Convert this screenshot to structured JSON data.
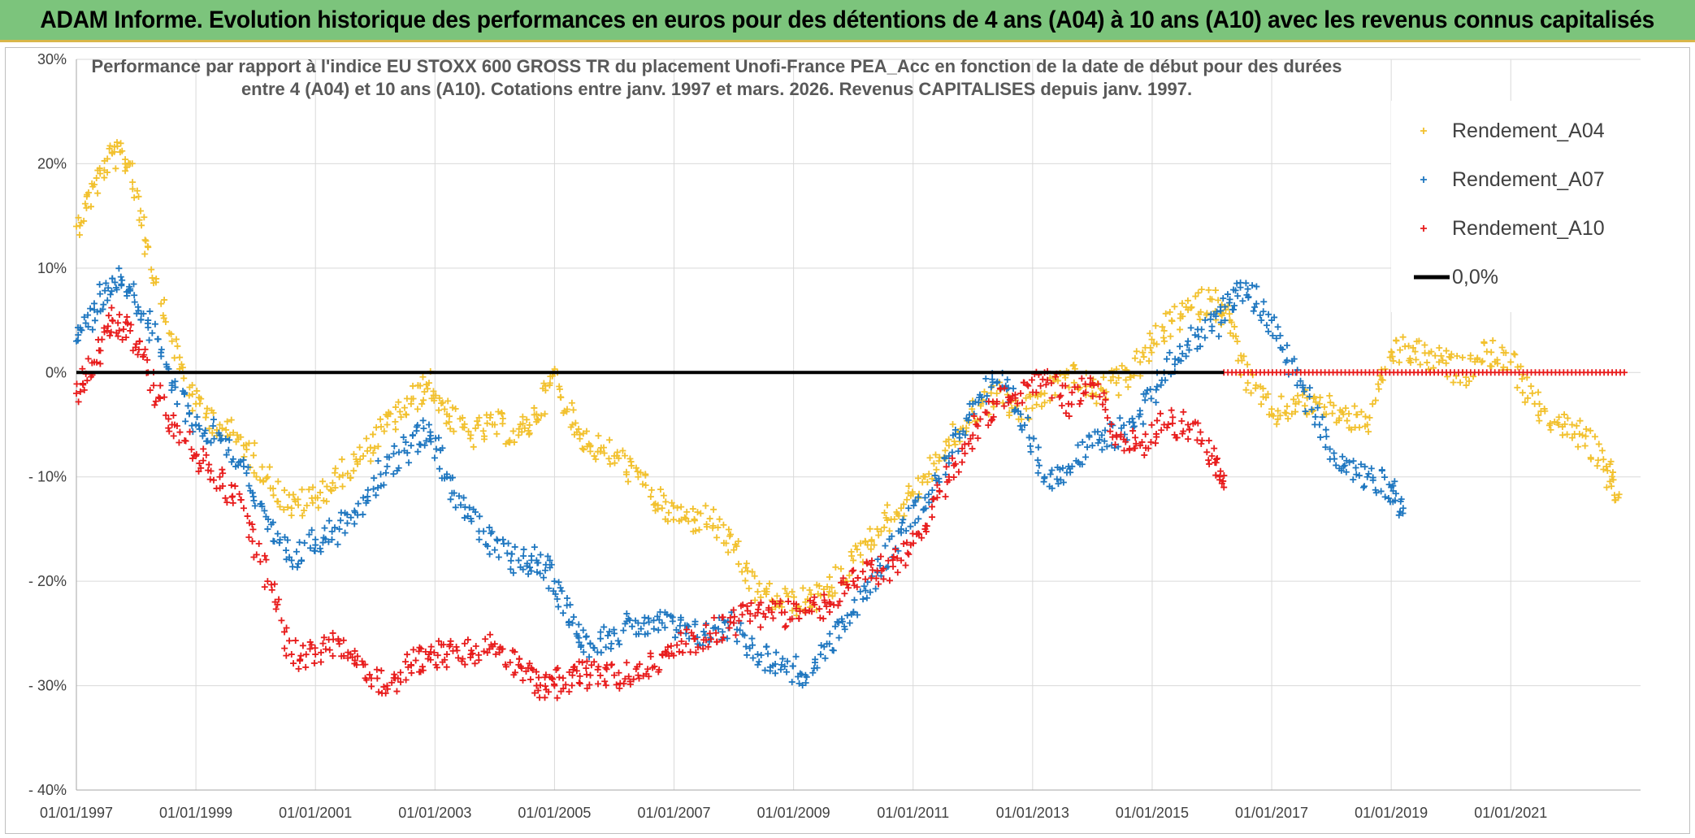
{
  "banner": {
    "title": "ADAM Informe. Evolution historique des performances en euros pour des détentions de 4 ans (A04) à 10 ans (A10) avec les revenus connus capitalisés"
  },
  "colors": {
    "banner_bg": "#7cc47c",
    "A04": "#f2c12e",
    "A07": "#1f77c0",
    "A10": "#e81c1c",
    "zero_line": "#000000",
    "grid": "#d9d9d9"
  },
  "chart_data": {
    "type": "scatter",
    "title_lines": [
      "Performance par rapport à l'indice EU STOXX 600 GROSS TR  du placement Unofi-France PEA_Acc en fonction de la date de début pour des durées",
      "entre 4 (A04) et 10 ans (A10). Cotations entre janv. 1997 et mars. 2026. Revenus CAPITALISES depuis janv. 1997."
    ],
    "xlabel": "",
    "ylabel": "",
    "x_range": [
      1997.0,
      2022.9
    ],
    "ylim": [
      -40,
      30
    ],
    "x_ticks": [
      {
        "x": 1997,
        "label": "01/01/1997"
      },
      {
        "x": 1999,
        "label": "01/01/1999"
      },
      {
        "x": 2001,
        "label": "01/01/2001"
      },
      {
        "x": 2003,
        "label": "01/01/2003"
      },
      {
        "x": 2005,
        "label": "01/01/2005"
      },
      {
        "x": 2007,
        "label": "01/01/2007"
      },
      {
        "x": 2009,
        "label": "01/01/2009"
      },
      {
        "x": 2011,
        "label": "01/01/2011"
      },
      {
        "x": 2013,
        "label": "01/01/2013"
      },
      {
        "x": 2015,
        "label": "01/01/2015"
      },
      {
        "x": 2017,
        "label": "01/01/2017"
      },
      {
        "x": 2019,
        "label": "01/01/2019"
      },
      {
        "x": 2021,
        "label": "01/01/2021"
      }
    ],
    "y_ticks": [
      {
        "y": 30,
        "label": "30%"
      },
      {
        "y": 20,
        "label": "20%"
      },
      {
        "y": 10,
        "label": "10%"
      },
      {
        "y": 0,
        "label": "0%"
      },
      {
        "y": -10,
        "label": "- 10%"
      },
      {
        "y": -20,
        "label": "- 20%"
      },
      {
        "y": -30,
        "label": "- 30%"
      },
      {
        "y": -40,
        "label": "- 40%"
      }
    ],
    "legend_position": "top-right",
    "legend": [
      {
        "key": "A04",
        "label": "Rendement_A04",
        "marker": "+"
      },
      {
        "key": "A07",
        "label": "Rendement_A07",
        "marker": "+"
      },
      {
        "key": "A10",
        "label": "Rendement_A10",
        "marker": "+"
      },
      {
        "key": "zero",
        "label": "0,0%",
        "marker": "line"
      }
    ],
    "reference_line": {
      "name": "0,0%",
      "y": 0
    },
    "series": [
      {
        "name": "Rendement_A04",
        "key": "A04",
        "x": [
          1997.0,
          1997.3,
          1997.6,
          1997.9,
          1998.2,
          1998.6,
          1999.0,
          1999.4,
          1999.8,
          2000.2,
          2000.6,
          2001.0,
          2001.4,
          2001.8,
          2002.2,
          2002.6,
          2002.9,
          2003.2,
          2003.6,
          2004.0,
          2004.4,
          2004.7,
          2005.0,
          2005.3,
          2005.6,
          2006.0,
          2006.4,
          2006.8,
          2007.2,
          2007.6,
          2008.0,
          2008.4,
          2008.8,
          2009.2,
          2009.6,
          2010.0,
          2010.4,
          2010.8,
          2011.2,
          2011.6,
          2012.0,
          2012.4,
          2012.8,
          2013.2,
          2013.6,
          2014.0,
          2014.4,
          2014.8,
          2015.2,
          2015.6,
          2016.0,
          2016.3,
          2016.6,
          2017.0,
          2017.4,
          2017.8,
          2018.2,
          2018.6,
          2019.0,
          2019.4,
          2019.8,
          2020.2,
          2020.6,
          2021.0,
          2021.4,
          2021.8,
          2022.2,
          2022.6,
          2022.8
        ],
        "values": [
          14,
          18,
          21,
          20,
          12,
          3,
          -3,
          -5,
          -7,
          -10,
          -13,
          -12,
          -10,
          -8,
          -5,
          -3,
          -1,
          -4,
          -6,
          -5,
          -6,
          -4,
          0,
          -5,
          -7,
          -8,
          -10,
          -13,
          -14,
          -14,
          -17,
          -21,
          -22,
          -22,
          -21,
          -18,
          -15,
          -13,
          -10,
          -7,
          -4,
          -2,
          -4,
          -2,
          0,
          -2,
          -1,
          1,
          4,
          6,
          7,
          5,
          -1,
          -4,
          -3,
          -3,
          -4,
          -5,
          2,
          2,
          1,
          0,
          2,
          1,
          -3,
          -5,
          -6,
          -9,
          -12
        ]
      },
      {
        "name": "Rendement_A07",
        "key": "A07",
        "x": [
          1997.0,
          1997.3,
          1997.6,
          1997.9,
          1998.2,
          1998.6,
          1999.0,
          1999.4,
          1999.8,
          2000.2,
          2000.6,
          2001.0,
          2001.4,
          2001.8,
          2002.2,
          2002.6,
          2002.9,
          2003.2,
          2003.6,
          2004.0,
          2004.4,
          2004.7,
          2005.0,
          2005.3,
          2005.6,
          2006.0,
          2006.4,
          2006.8,
          2007.2,
          2007.6,
          2008.0,
          2008.4,
          2008.8,
          2009.2,
          2009.6,
          2010.0,
          2010.4,
          2010.8,
          2011.2,
          2011.6,
          2012.0,
          2012.4,
          2012.8,
          2013.2,
          2013.6,
          2014.0,
          2014.4,
          2014.8,
          2015.2,
          2015.6,
          2016.0,
          2016.3,
          2016.6,
          2017.0,
          2017.4,
          2017.8,
          2018.2,
          2018.6,
          2019.0,
          2019.2
        ],
        "values": [
          3,
          6,
          9,
          8,
          5,
          -1,
          -5,
          -6,
          -9,
          -15,
          -18,
          -16,
          -15,
          -12,
          -9,
          -7,
          -5,
          -10,
          -14,
          -17,
          -18,
          -18,
          -20,
          -24,
          -26,
          -25,
          -24,
          -24,
          -25,
          -25,
          -24,
          -27,
          -28,
          -29,
          -26,
          -23,
          -19,
          -15,
          -12,
          -8,
          -3,
          -1,
          -4,
          -10,
          -9,
          -7,
          -6,
          -4,
          0,
          3,
          4,
          7,
          8,
          5,
          0,
          -5,
          -9,
          -10,
          -11,
          -13
        ]
      },
      {
        "name": "Rendement_A10",
        "key": "A10",
        "x": [
          1997.0,
          1997.3,
          1997.6,
          1997.9,
          1998.2,
          1998.6,
          1999.0,
          1999.4,
          1999.8,
          2000.2,
          2000.6,
          2001.0,
          2001.4,
          2001.8,
          2002.2,
          2002.6,
          2002.9,
          2003.2,
          2003.6,
          2004.0,
          2004.4,
          2004.7,
          2005.0,
          2005.3,
          2005.6,
          2006.0,
          2006.4,
          2006.8,
          2007.2,
          2007.6,
          2008.0,
          2008.4,
          2008.8,
          2009.2,
          2009.6,
          2010.0,
          2010.4,
          2010.8,
          2011.2,
          2011.6,
          2012.0,
          2012.4,
          2012.8,
          2013.2,
          2013.6,
          2014.0,
          2014.4,
          2014.8,
          2015.2,
          2015.6,
          2016.0,
          2016.2
        ],
        "values": [
          -2,
          1,
          5,
          4,
          0,
          -5,
          -8,
          -10,
          -13,
          -20,
          -27,
          -27,
          -26,
          -28,
          -30,
          -28,
          -27,
          -27,
          -27,
          -26,
          -28,
          -30,
          -30,
          -29,
          -29,
          -29,
          -29,
          -27,
          -26,
          -25,
          -24,
          -23,
          -23,
          -23,
          -22,
          -20,
          -19,
          -18,
          -15,
          -10,
          -6,
          -3,
          -2,
          0,
          -3,
          -1,
          -6,
          -7,
          -5,
          -5,
          -8,
          -11
        ]
      },
      {
        "name": "Rendement_A10 (0%)",
        "key": "A10",
        "x": [
          2016.2,
          2022.9
        ],
        "values": [
          0,
          0
        ]
      }
    ]
  }
}
